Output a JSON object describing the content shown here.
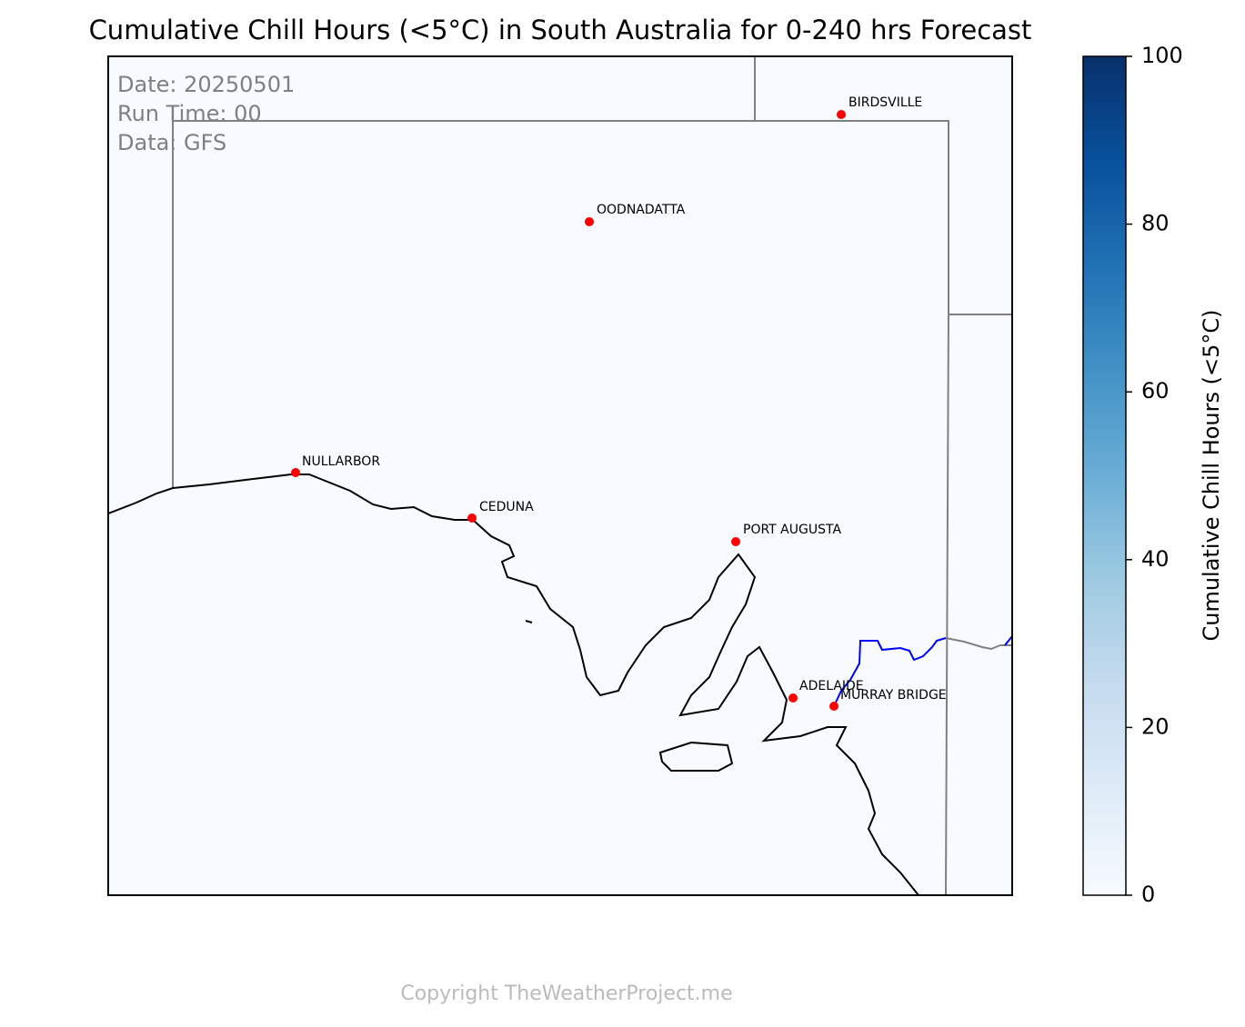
{
  "title": "Cumulative Chill Hours (<5°C) in South Australia for 0-240 hrs Forecast",
  "info": [
    "Date: 20250501",
    "Run Time: 00",
    "Data: GFS"
  ],
  "cities": [
    "BIRDSVILLE",
    "OODNADATTA",
    "NULLARBOR",
    "CEDUNA",
    "PORT AUGUSTA",
    "ADELAIDE",
    "MURRAY BRIDGE"
  ],
  "colorbar": {
    "label": "Cumulative Chill Hours (<5°C)",
    "lim": [
      0,
      100
    ],
    "ticks": [
      0,
      20,
      40,
      60,
      80,
      100
    ],
    "colors": [
      "#f7fbff",
      "#deebf7",
      "#c6dbef",
      "#9ecae1",
      "#6baed6",
      "#4292c6",
      "#2171b5",
      "#08519c",
      "#08306b"
    ]
  },
  "copyright": "Copyright TheWeatherProject.me"
}
